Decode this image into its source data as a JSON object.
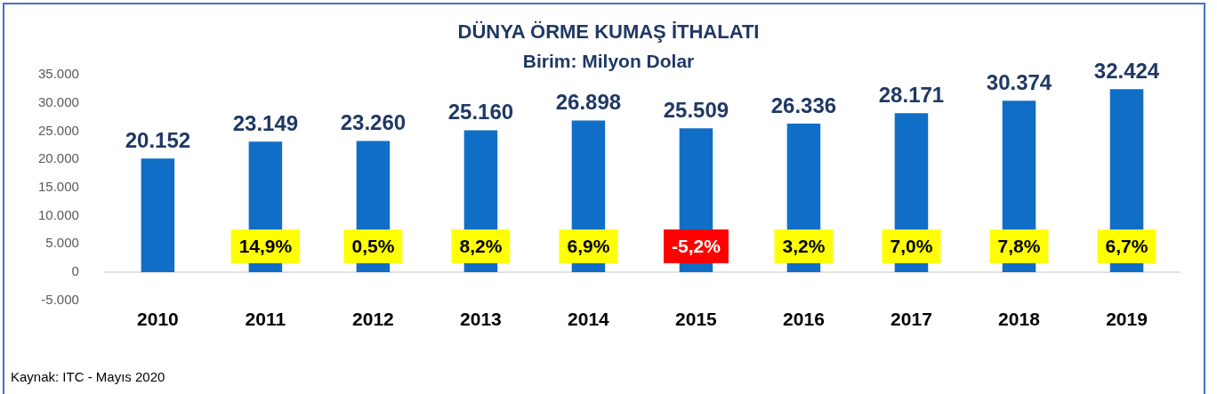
{
  "chart_data": {
    "type": "bar",
    "title": "DÜNYA ÖRME KUMAŞ İTHALATI",
    "subtitle": "Birim: Milyon Dolar",
    "categories": [
      "2010",
      "2011",
      "2012",
      "2013",
      "2014",
      "2015",
      "2016",
      "2017",
      "2018",
      "2019"
    ],
    "values": [
      20152,
      23149,
      23260,
      25160,
      26898,
      25509,
      26336,
      28171,
      30374,
      32424
    ],
    "value_labels": [
      "20.152",
      "23.149",
      "23.260",
      "25.160",
      "26.898",
      "25.509",
      "26.336",
      "28.171",
      "30.374",
      "32.424"
    ],
    "color": "#106ec6",
    "ylim": [
      -5000,
      35000
    ],
    "yticks": [
      {
        "value": -5000,
        "label": "-5.000"
      },
      0,
      {
        "value": 5000,
        "label": "5.000"
      },
      {
        "value": 10000,
        "label": "10.000"
      },
      {
        "value": 15000,
        "label": "15.000"
      },
      {
        "value": 20000,
        "label": "20.000"
      },
      {
        "value": 25000,
        "label": "25.000"
      },
      {
        "value": 30000,
        "label": "30.000"
      },
      {
        "value": 35000,
        "label": "35.000"
      }
    ],
    "annotations": [
      "14,9%",
      "0,5%",
      "8,2%",
      "6,9%",
      "-5,2%",
      "3,2%",
      "7,0%",
      "7,8%",
      "6,7%",
      "Kaynak: ITC - Mayıs 2020"
    ]
  }
}
